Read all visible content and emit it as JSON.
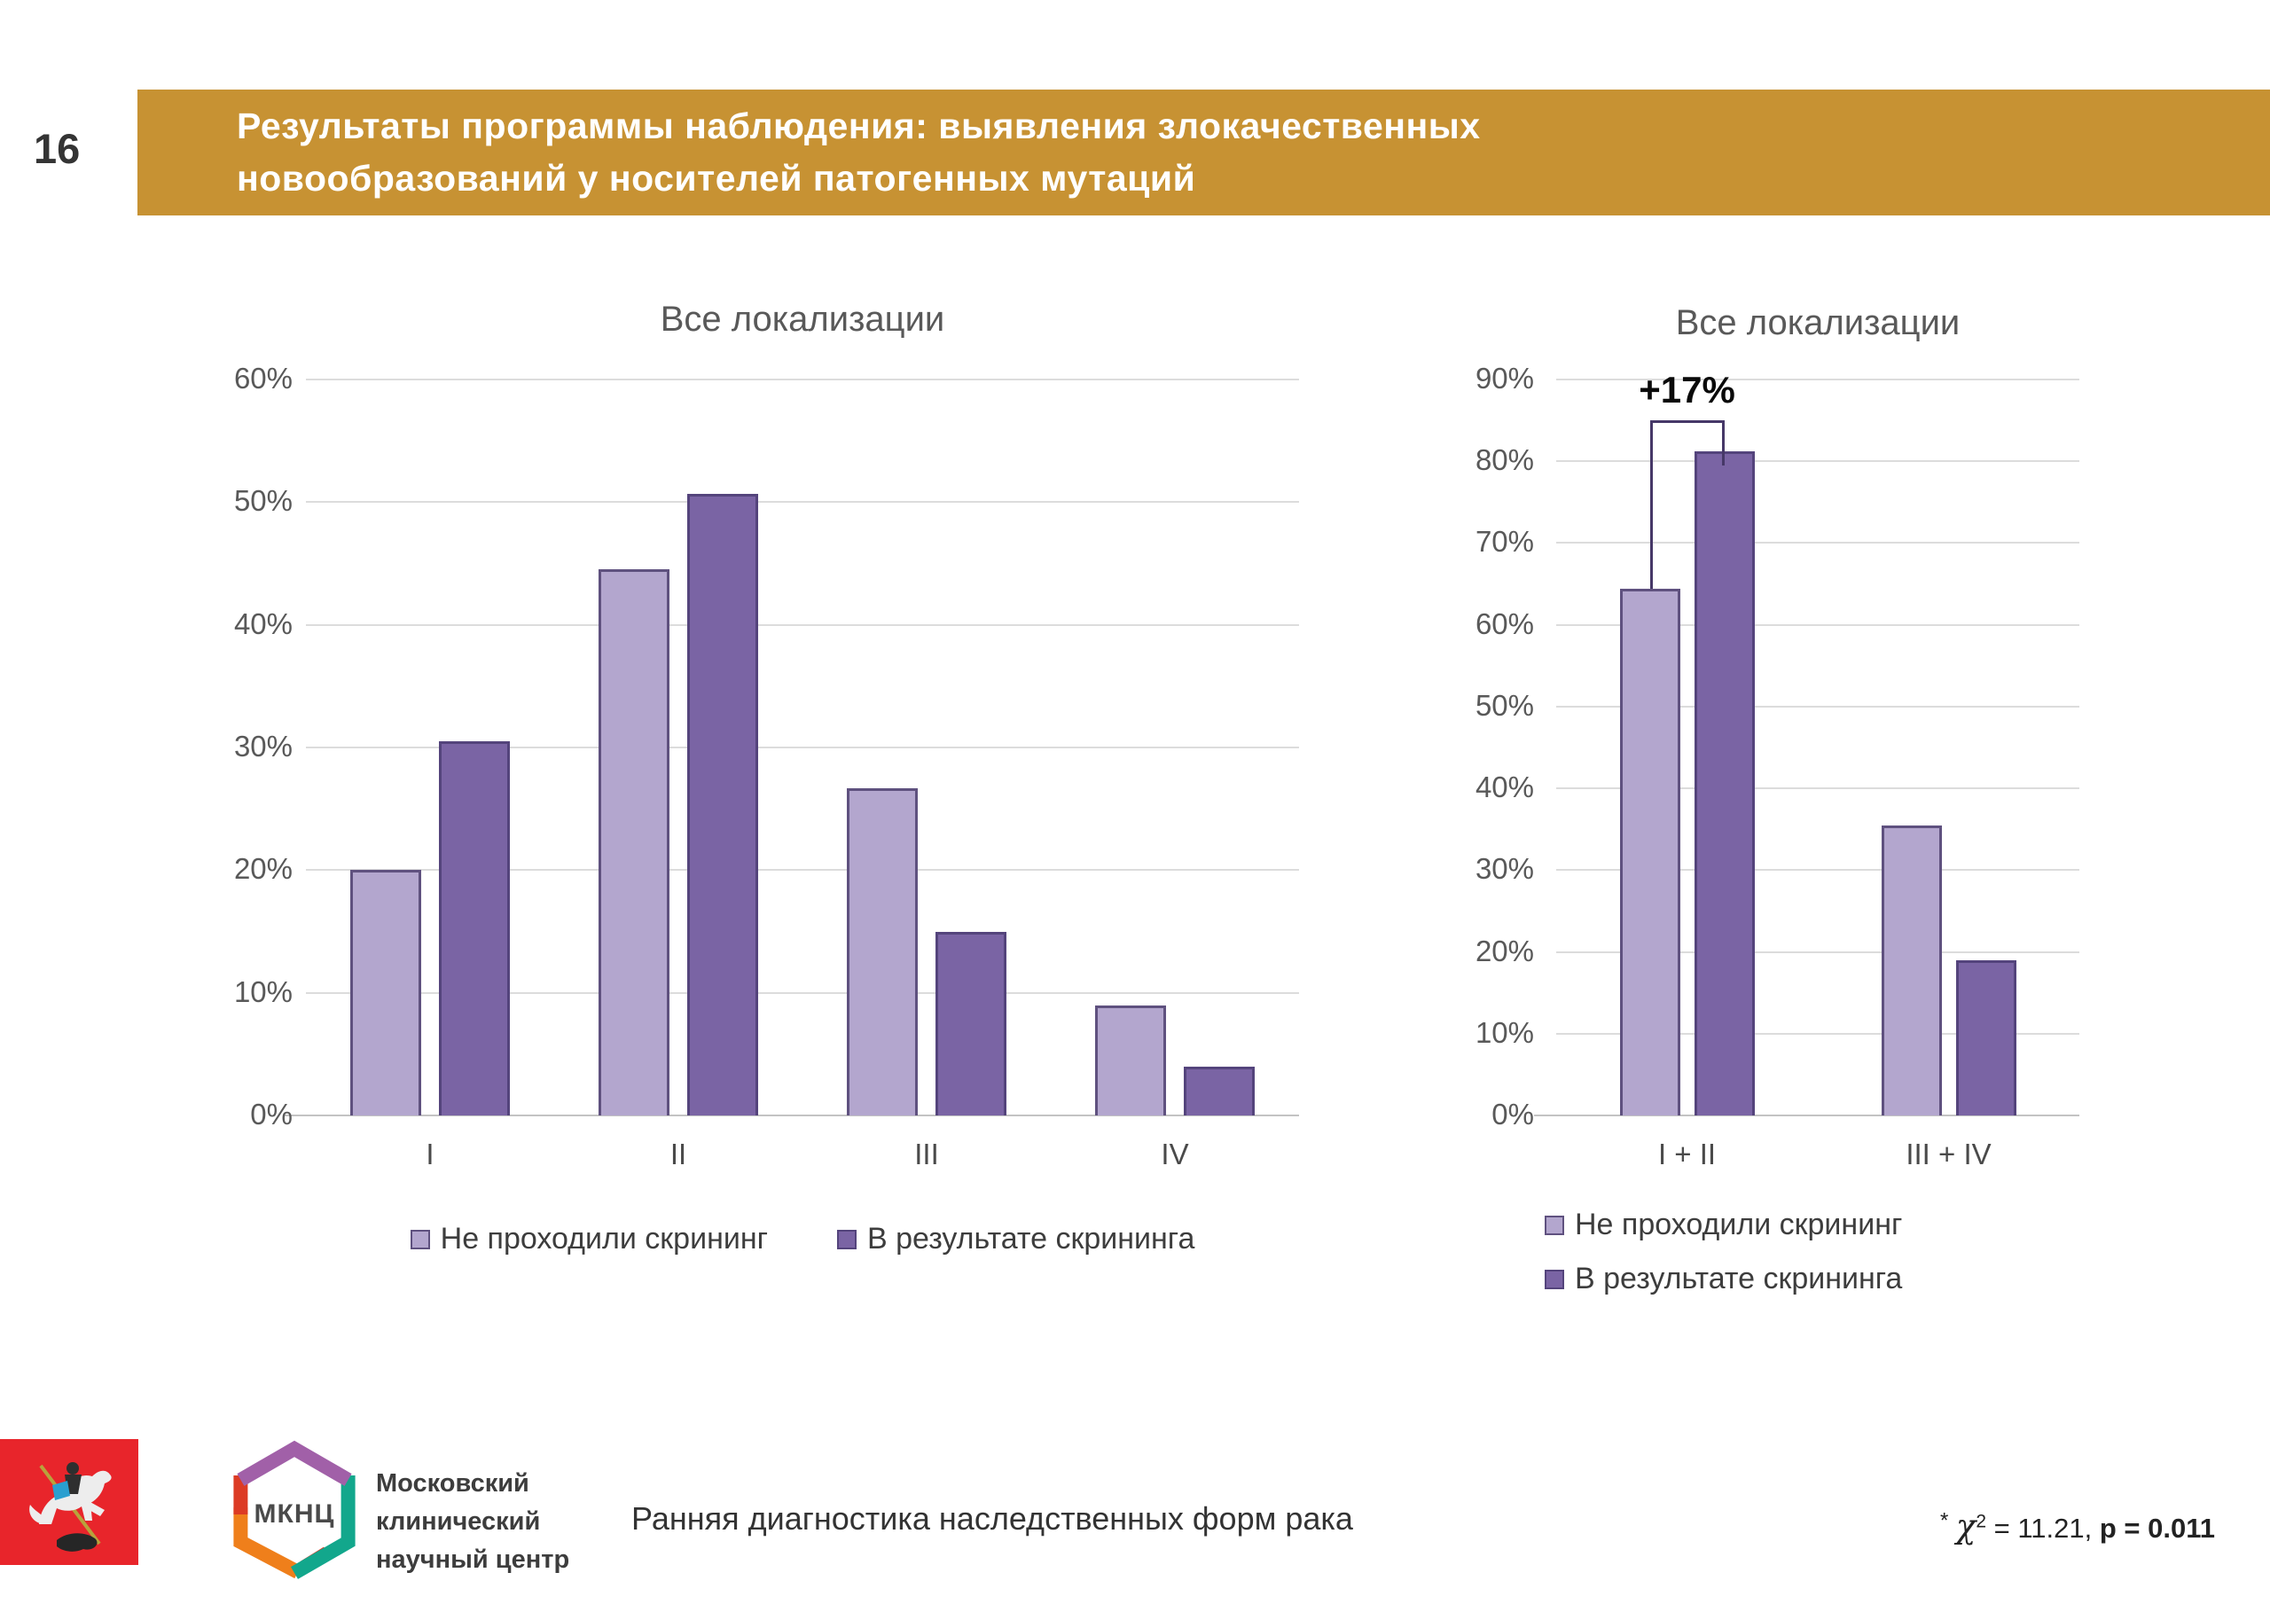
{
  "slide": {
    "number": "16",
    "title_line1": "Результаты программы наблюдения: выявления злокачественных",
    "title_line2": "новообразований у носителей патогенных мутаций"
  },
  "palette": {
    "header_bg": "#c79233",
    "light_fill": "#b3a6ce",
    "light_border": "#5f517f",
    "dark_fill": "#7a64a4",
    "dark_border": "#54447c",
    "gridline": "#dcdcdc",
    "bracket": "#463868",
    "flag_red": "#e8252b",
    "hex_purple": "#a160a8",
    "hex_teal": "#12a78c",
    "hex_orange": "#ef7f1b",
    "hex_red": "#dc3b24"
  },
  "chart_data": [
    {
      "type": "bar",
      "title": "Все локализации",
      "categories": [
        "I",
        "II",
        "III",
        "IV"
      ],
      "series": [
        {
          "name": "Не проходили скрининг",
          "values": [
            20,
            44.5,
            26.7,
            9
          ]
        },
        {
          "name": "В результате скрининга",
          "values": [
            30.5,
            50.7,
            15,
            4
          ]
        }
      ],
      "xlabel": "",
      "ylabel": "",
      "ylim": [
        0,
        60
      ],
      "ytick_step": 10,
      "ytick_format": "percent",
      "grid": true,
      "legend_position": "bottom-row"
    },
    {
      "type": "bar",
      "title": "Все локализации",
      "categories": [
        "I + II",
        "III + IV"
      ],
      "series": [
        {
          "name": "Не проходили скрининг",
          "values": [
            64.4,
            35.5
          ]
        },
        {
          "name": "В результате скрининга",
          "values": [
            81.2,
            19
          ]
        }
      ],
      "xlabel": "",
      "ylabel": "",
      "ylim": [
        0,
        90
      ],
      "ytick_step": 10,
      "ytick_format": "percent",
      "grid": true,
      "legend_position": "bottom-stacked",
      "annotation": {
        "text": "+17%",
        "bracket_level": 85,
        "category_index": 0,
        "from_series": 0,
        "to_series": 1,
        "right_leg_level": 79.5
      }
    }
  ],
  "footer": {
    "logo_text": "МКНЦ",
    "org_line1": "Московский",
    "org_line2": "клинический",
    "org_line3": "научный центр",
    "center_text": "Ранняя диагностика наследственных форм рака",
    "stat": {
      "prefix": "*",
      "chi": "χ",
      "sup": "2",
      "mid": " = 11.21, ",
      "bold": "p = 0.011"
    }
  }
}
